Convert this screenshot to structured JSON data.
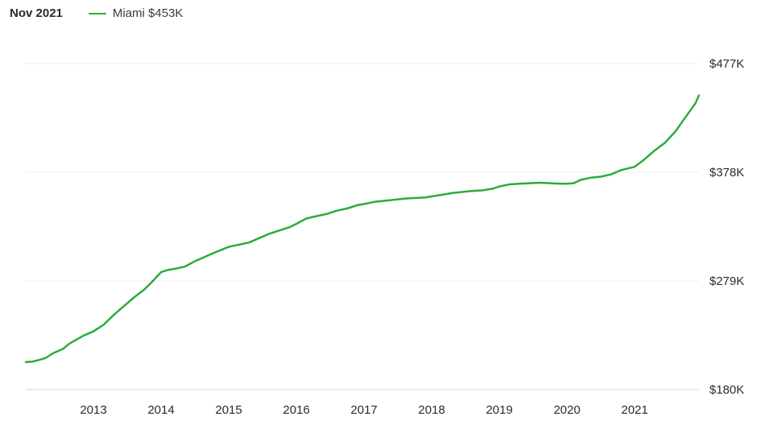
{
  "header": {
    "date_label": "Nov 2021",
    "legend_label": "Miami $453K"
  },
  "colors": {
    "series": "#2eaa3c"
  },
  "chart_data": {
    "type": "line",
    "title": "",
    "xlabel": "",
    "ylabel": "",
    "series": [
      {
        "name": "Miami",
        "points": [
          [
            2012.0,
            205
          ],
          [
            2012.1,
            205.5
          ],
          [
            2012.2,
            207
          ],
          [
            2012.3,
            209
          ],
          [
            2012.4,
            213
          ],
          [
            2012.55,
            217
          ],
          [
            2012.65,
            222
          ],
          [
            2012.85,
            229
          ],
          [
            2013.0,
            233
          ],
          [
            2013.15,
            239
          ],
          [
            2013.3,
            248
          ],
          [
            2013.45,
            256
          ],
          [
            2013.6,
            264
          ],
          [
            2013.75,
            271
          ],
          [
            2013.85,
            277
          ],
          [
            2014.0,
            287
          ],
          [
            2014.1,
            289
          ],
          [
            2014.2,
            290
          ],
          [
            2014.35,
            292
          ],
          [
            2014.5,
            297
          ],
          [
            2014.65,
            301
          ],
          [
            2014.8,
            305
          ],
          [
            2015.0,
            310
          ],
          [
            2015.15,
            312
          ],
          [
            2015.3,
            314
          ],
          [
            2015.45,
            318
          ],
          [
            2015.6,
            322
          ],
          [
            2015.75,
            325
          ],
          [
            2015.9,
            328
          ],
          [
            2016.0,
            331
          ],
          [
            2016.15,
            336
          ],
          [
            2016.3,
            338
          ],
          [
            2016.45,
            340
          ],
          [
            2016.6,
            343
          ],
          [
            2016.75,
            345
          ],
          [
            2016.9,
            348
          ],
          [
            2017.0,
            349
          ],
          [
            2017.15,
            351
          ],
          [
            2017.3,
            352
          ],
          [
            2017.45,
            353
          ],
          [
            2017.6,
            354
          ],
          [
            2017.75,
            354.5
          ],
          [
            2017.9,
            355
          ],
          [
            2018.0,
            356
          ],
          [
            2018.15,
            357.5
          ],
          [
            2018.3,
            359
          ],
          [
            2018.45,
            360
          ],
          [
            2018.6,
            361
          ],
          [
            2018.75,
            361.5
          ],
          [
            2018.9,
            363
          ],
          [
            2019.0,
            365
          ],
          [
            2019.15,
            367
          ],
          [
            2019.3,
            367.5
          ],
          [
            2019.45,
            368
          ],
          [
            2019.6,
            368.5
          ],
          [
            2019.75,
            368
          ],
          [
            2019.9,
            367.5
          ],
          [
            2020.0,
            367.5
          ],
          [
            2020.1,
            368
          ],
          [
            2020.2,
            371
          ],
          [
            2020.35,
            373
          ],
          [
            2020.5,
            374
          ],
          [
            2020.65,
            376
          ],
          [
            2020.8,
            380
          ],
          [
            2021.0,
            383
          ],
          [
            2021.15,
            390
          ],
          [
            2021.3,
            398
          ],
          [
            2021.45,
            405
          ],
          [
            2021.6,
            415
          ],
          [
            2021.75,
            428
          ],
          [
            2021.9,
            441
          ],
          [
            2021.95,
            448
          ]
        ]
      }
    ],
    "x_ticks": [
      "2013",
      "2014",
      "2015",
      "2016",
      "2017",
      "2018",
      "2019",
      "2020",
      "2021"
    ],
    "x_tick_values": [
      2013,
      2014,
      2015,
      2016,
      2017,
      2018,
      2019,
      2020,
      2021
    ],
    "xlim": [
      2012.0,
      2021.95
    ],
    "y_ticks": [
      "$477K",
      "$378K",
      "$279K",
      "$180K"
    ],
    "y_tick_values": [
      477,
      378,
      279,
      180
    ],
    "ylim": [
      180,
      477
    ],
    "grid": true,
    "y_axis_side": "right",
    "legend_placement": "top-left"
  }
}
